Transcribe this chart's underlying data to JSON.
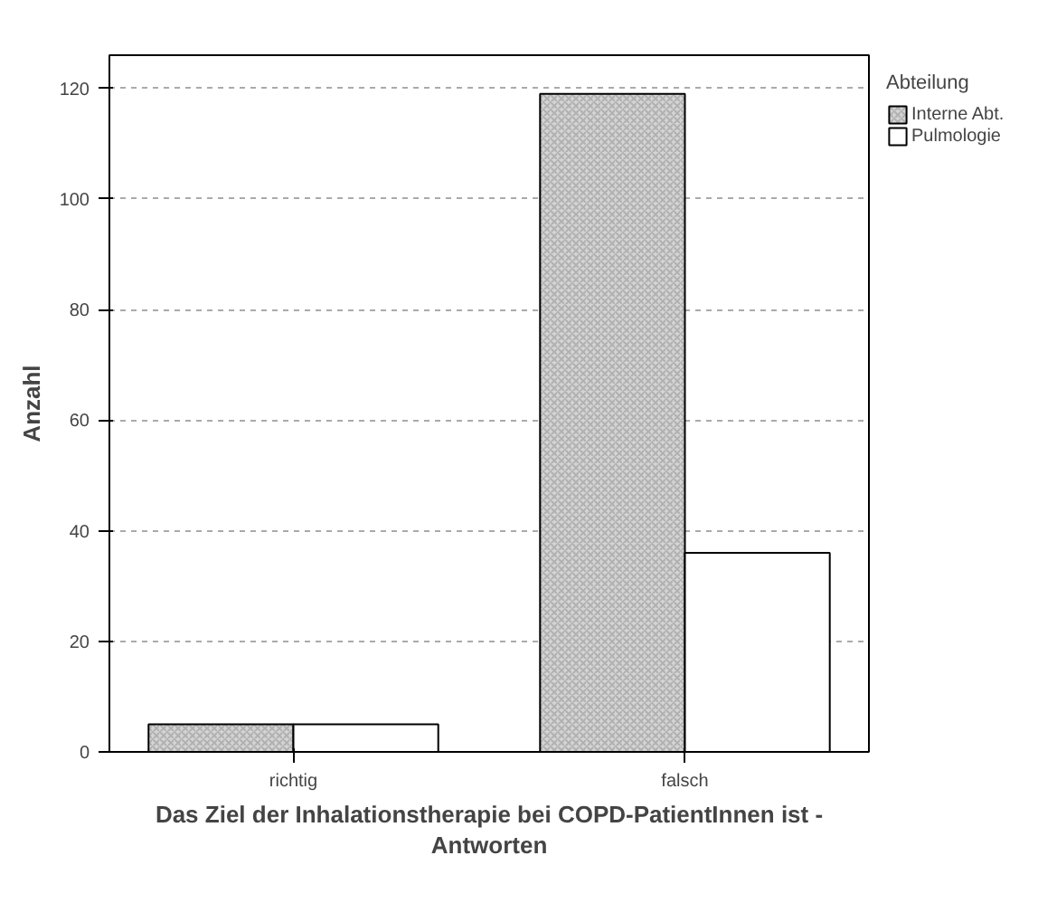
{
  "chart_data": {
    "type": "bar",
    "xlabel": "Das Ziel der Inhalationstherapie bei COPD-PatientInnen ist - Antworten",
    "ylabel": "Anzahl",
    "legend_title": "Abteilung",
    "categories": [
      "richtig",
      "falsch"
    ],
    "series": [
      {
        "name": "Interne Abt.",
        "color": "#d4d4d4",
        "values": [
          5,
          119
        ]
      },
      {
        "name": "Pulmologie",
        "color": "#ffffff",
        "values": [
          5,
          36
        ]
      }
    ],
    "ylim": [
      0,
      126
    ],
    "yticks": [
      0,
      20,
      40,
      60,
      80,
      100,
      120
    ],
    "grid": "y",
    "legend": "top right"
  }
}
